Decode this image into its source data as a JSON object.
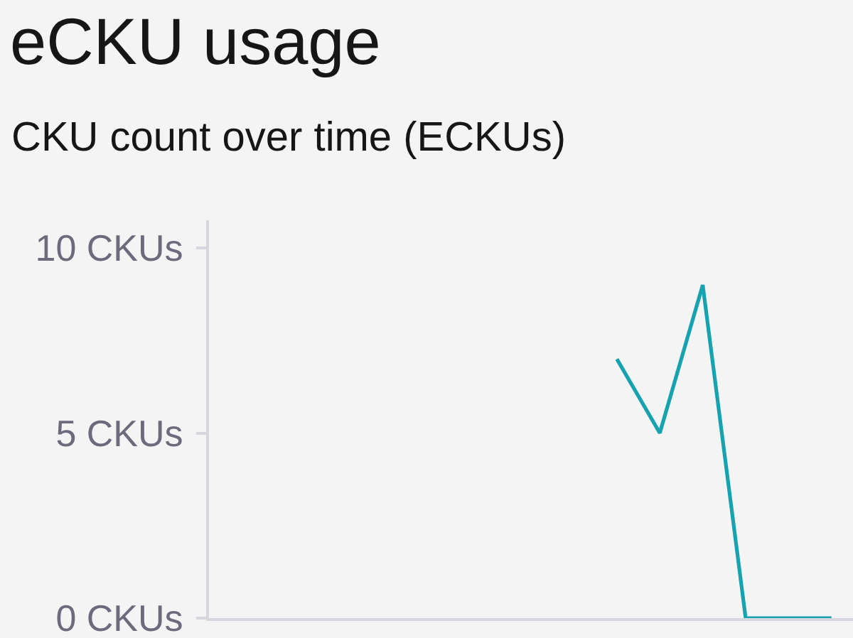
{
  "chart_data": {
    "type": "line",
    "title": "eCKU usage",
    "subtitle": "CKU count over time (ECKUs)",
    "categories": [
      null,
      null,
      null,
      null,
      null,
      null,
      null,
      null,
      null,
      null,
      null,
      null,
      null,
      null,
      null
    ],
    "series": [
      {
        "color": "#17a2b0",
        "values": [
          null,
          null,
          null,
          null,
          null,
          null,
          null,
          null,
          null,
          7,
          5,
          9,
          0,
          0,
          0
        ]
      }
    ],
    "ylim": [
      0,
      10.75
    ],
    "yticks": [
      {
        "value": 0,
        "label": "0 CKUs"
      },
      {
        "value": 5,
        "label": "5 CKUs"
      },
      {
        "value": 10,
        "label": "10 CKUs"
      }
    ],
    "tick_labels": "y",
    "grid": false,
    "marker": "none",
    "line_style": "solid"
  }
}
